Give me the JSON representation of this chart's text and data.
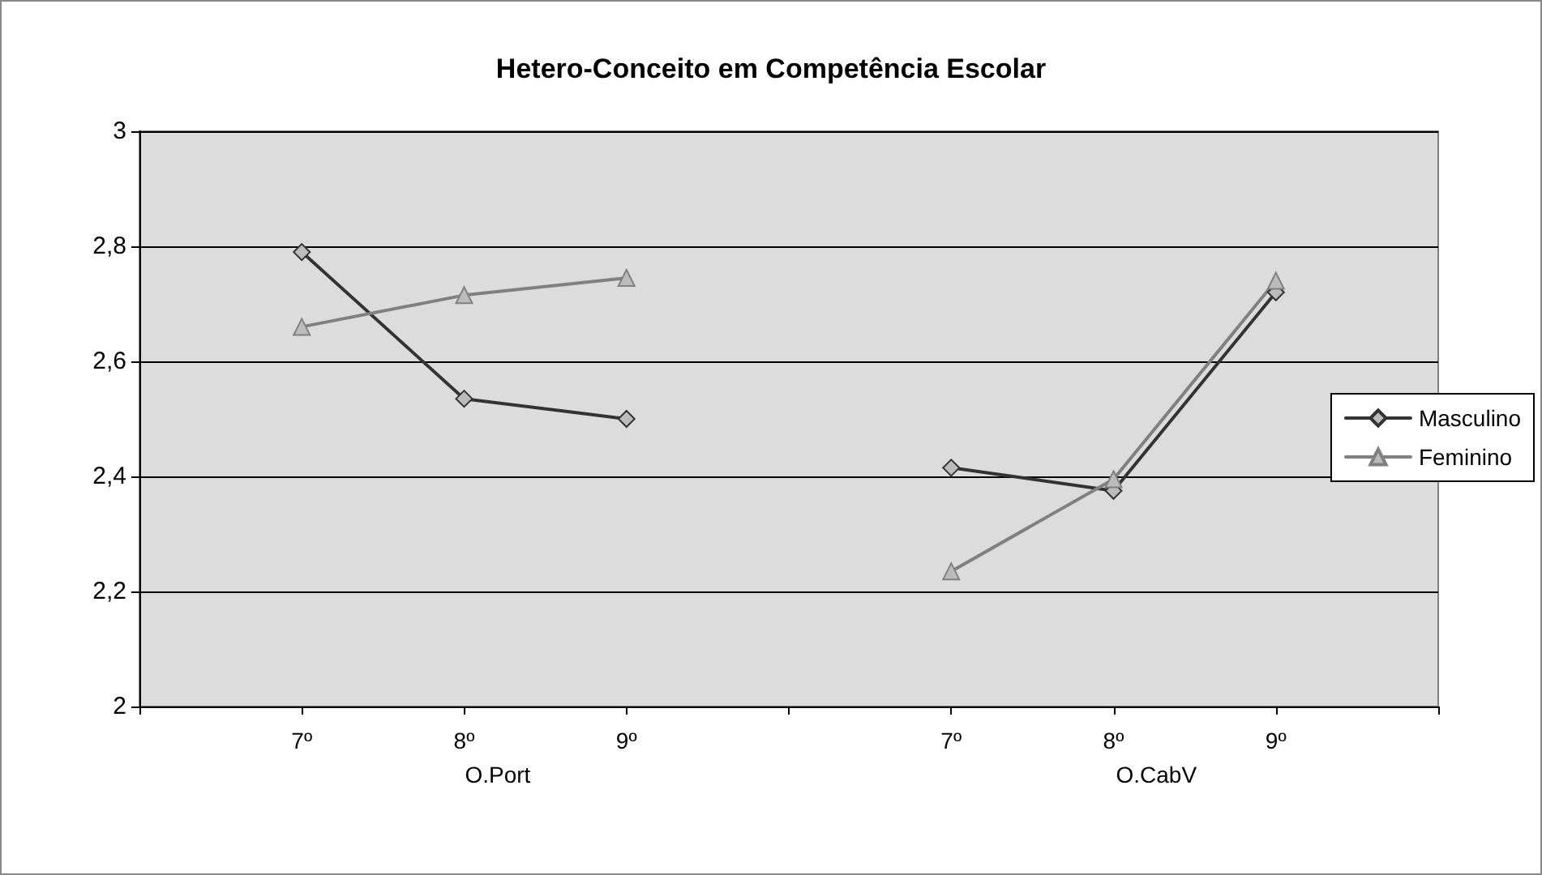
{
  "chart_data": {
    "type": "line",
    "title": "Hetero-Conceito em Competência Escolar",
    "categories": [
      null,
      "7º",
      "8º",
      "9º",
      null,
      "7º",
      "8º",
      "9º",
      null
    ],
    "series": [
      {
        "name": "Masculino",
        "color": "#333333",
        "marker": "diamond",
        "values": [
          null,
          2.79,
          2.535,
          2.5,
          null,
          2.415,
          2.375,
          2.72,
          null
        ]
      },
      {
        "name": "Feminino",
        "color": "#808080",
        "marker": "triangle",
        "values": [
          null,
          2.66,
          2.715,
          2.745,
          null,
          2.235,
          2.395,
          2.74,
          null
        ]
      }
    ],
    "ylim": [
      2,
      3
    ],
    "yticks": [
      {
        "value": 2,
        "label": "2"
      },
      {
        "value": 2.2,
        "label": "2,2"
      },
      {
        "value": 2.4,
        "label": "2,4"
      },
      {
        "value": 2.6,
        "label": "2,6"
      },
      {
        "value": 2.8,
        "label": "2,8"
      },
      {
        "value": 3,
        "label": "3"
      }
    ],
    "annotations": [
      "O.Port",
      "O.CabV"
    ],
    "grid": "y",
    "legend": "right"
  }
}
